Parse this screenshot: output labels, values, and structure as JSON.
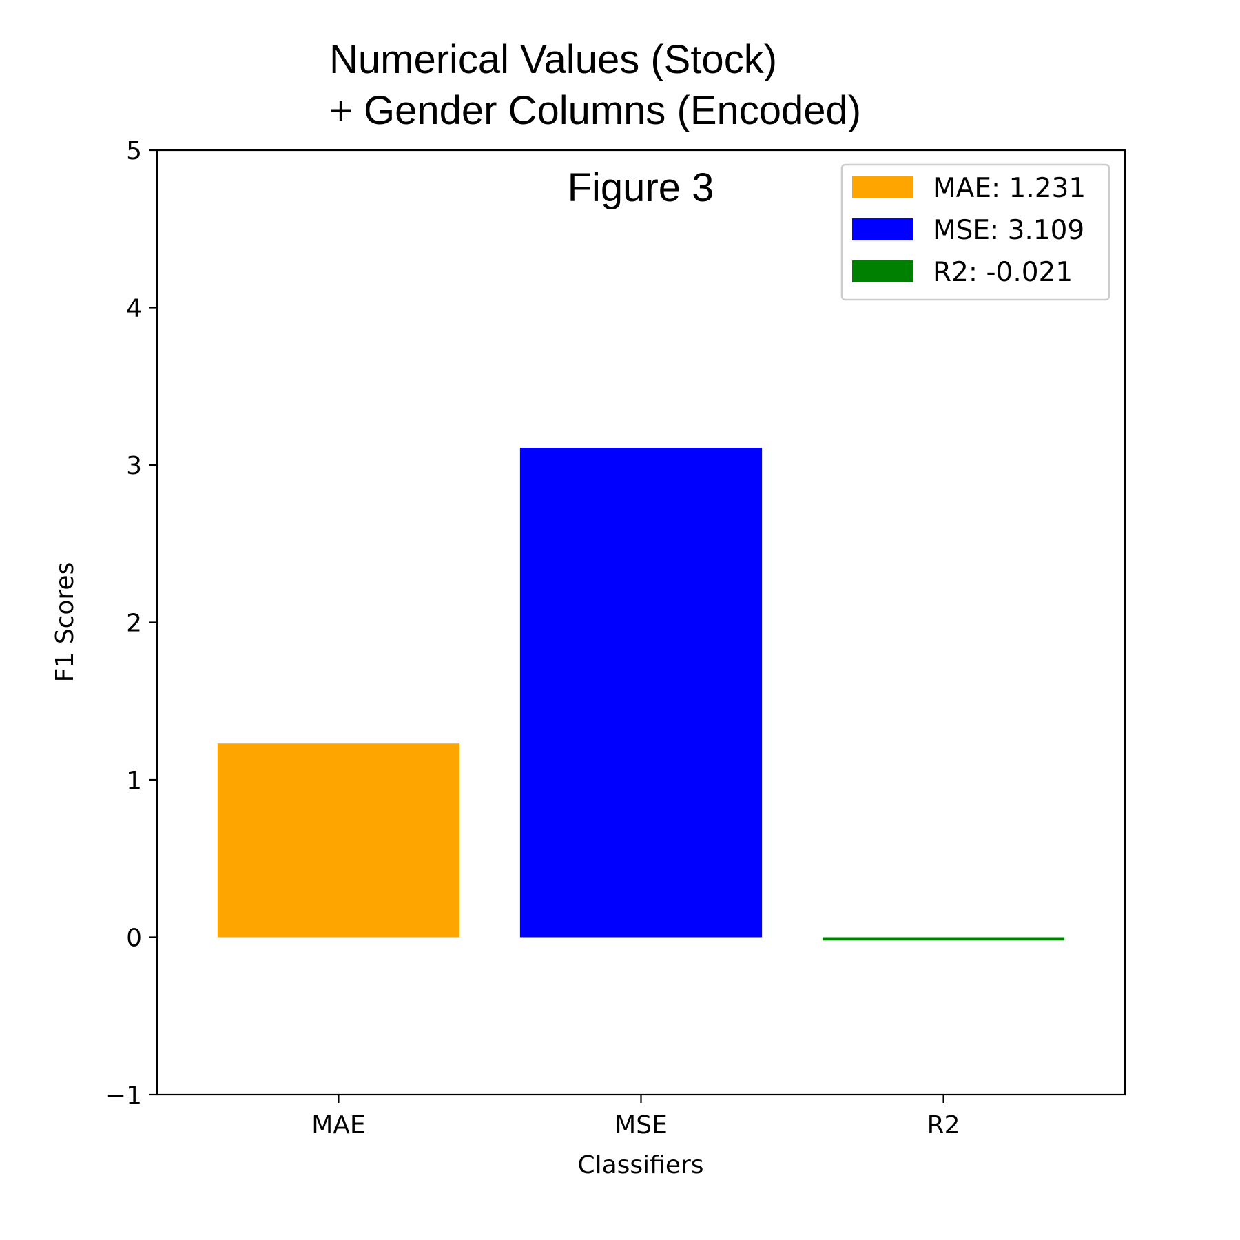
{
  "chart_data": {
    "type": "bar",
    "title_line1": "Numerical Values (Stock)",
    "title_line2": "+ Gender Columns (Encoded)",
    "annotation": "Figure 3",
    "xlabel": "Classifiers",
    "ylabel": "F1 Scores",
    "ylim": [
      -1,
      5
    ],
    "yticks": [
      {
        "value": -1,
        "label": "−1"
      },
      {
        "value": 0,
        "label": "0"
      },
      {
        "value": 1,
        "label": "1"
      },
      {
        "value": 2,
        "label": "2"
      },
      {
        "value": 3,
        "label": "3"
      },
      {
        "value": 4,
        "label": "4"
      },
      {
        "value": 5,
        "label": "5"
      }
    ],
    "categories": [
      "MAE",
      "MSE",
      "R2"
    ],
    "values": [
      1.231,
      3.109,
      -0.021
    ],
    "colors": [
      "#ffa500",
      "#0000ff",
      "#008000"
    ],
    "legend": {
      "placement": "top-right",
      "entries": [
        "MAE: 1.231",
        "MSE: 3.109",
        "R2: -0.021"
      ]
    },
    "grid": false
  }
}
